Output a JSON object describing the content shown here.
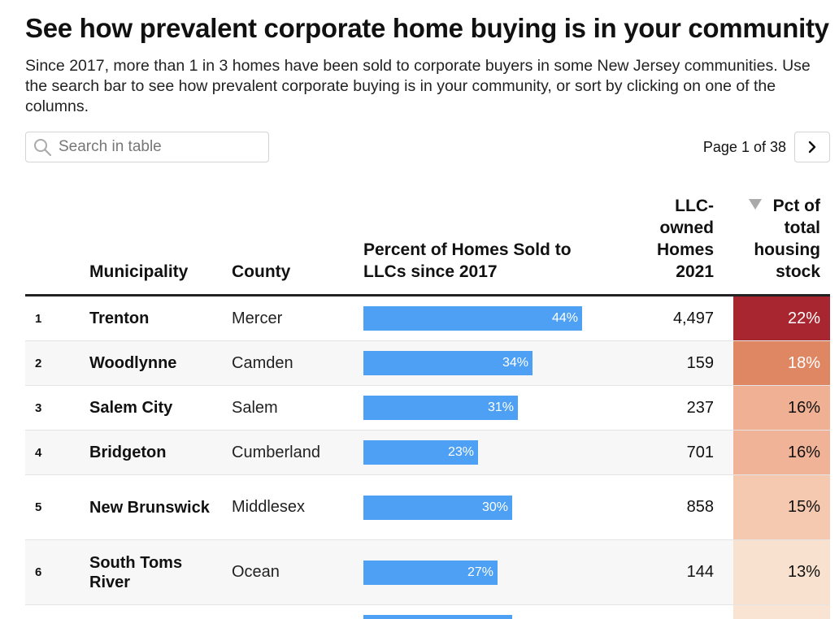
{
  "header": {
    "title": "See how prevalent corporate home buying is in your community",
    "description": "Since 2017, more than 1 in 3 homes have been sold to corporate buyers in some New Jersey communities. Use the search bar to see how prevalent corporate buying is in your community, or sort by clicking on one of the columns."
  },
  "search": {
    "placeholder": "Search in table",
    "icon": "search-icon"
  },
  "pagination": {
    "label": "Page 1 of 38",
    "next_icon": "chevron-right-icon"
  },
  "columns": {
    "municipality": "Municipality",
    "county": "County",
    "pct_sold": "Percent of Homes Sold to LLCs since 2017",
    "llc_owned": "LLC-owned Homes 2021",
    "pct_stock": "Pct of total housing stock"
  },
  "rows": [
    {
      "rank": "1",
      "municipality": "Trenton",
      "county": "Mercer",
      "pct_sold": 44,
      "pct_sold_label": "44%",
      "llc_owned": "4,497",
      "pct_stock": "22%",
      "stock_color": "#a8262f",
      "stock_text_color": "#ffffff"
    },
    {
      "rank": "2",
      "municipality": "Woodlynne",
      "county": "Camden",
      "pct_sold": 34,
      "pct_sold_label": "34%",
      "llc_owned": "159",
      "pct_stock": "18%",
      "stock_color": "#df8663",
      "stock_text_color": "#ffffff"
    },
    {
      "rank": "3",
      "municipality": "Salem City",
      "county": "Salem",
      "pct_sold": 31,
      "pct_sold_label": "31%",
      "llc_owned": "237",
      "pct_stock": "16%",
      "stock_color": "#f0b094",
      "stock_text_color": "#111111"
    },
    {
      "rank": "4",
      "municipality": "Bridgeton",
      "county": "Cumberland",
      "pct_sold": 23,
      "pct_sold_label": "23%",
      "llc_owned": "701",
      "pct_stock": "16%",
      "stock_color": "#f1b398",
      "stock_text_color": "#111111"
    },
    {
      "rank": "5",
      "municipality": "New Brunswick",
      "county": "Middlesex",
      "pct_sold": 30,
      "pct_sold_label": "30%",
      "llc_owned": "858",
      "pct_stock": "15%",
      "stock_color": "#f5c9b0",
      "stock_text_color": "#111111"
    },
    {
      "rank": "6",
      "municipality": "South Toms River",
      "county": "Ocean",
      "pct_sold": 27,
      "pct_sold_label": "27%",
      "llc_owned": "144",
      "pct_stock": "13%",
      "stock_color": "#f8e1cf",
      "stock_text_color": "#111111"
    }
  ],
  "partial_row": {
    "pct_sold": 30,
    "stock_color": "#f9e4d4"
  },
  "colors": {
    "bar": "#4da0f3",
    "accent_border": "#222222"
  }
}
